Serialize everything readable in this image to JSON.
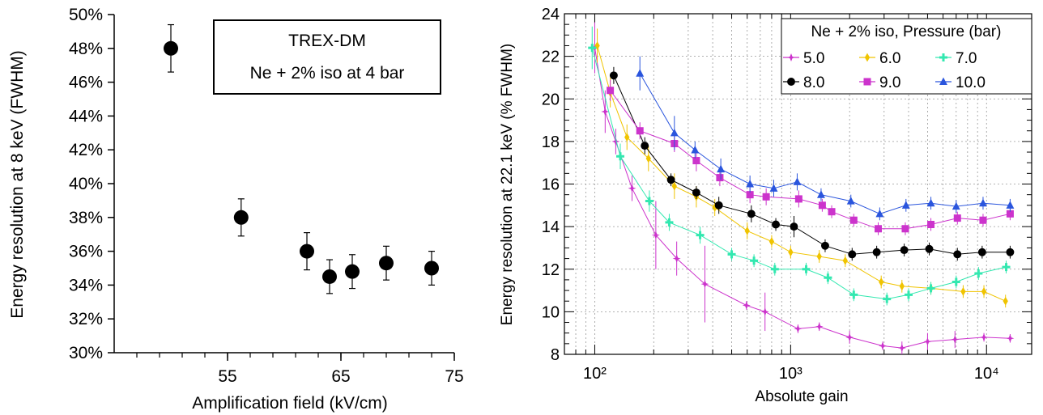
{
  "chart_data": [
    {
      "type": "scatter",
      "title": "TREX-DM",
      "subtitle": "Ne + 2% iso at 4 bar",
      "xlabel": "Amplification field (kV/cm)",
      "ylabel": "Energy resolution at 8 keV (FWHM)",
      "xlim": [
        45,
        75
      ],
      "ylim": [
        30,
        50
      ],
      "x_ticks": [
        55,
        65,
        75
      ],
      "y_ticks": [
        30,
        32,
        34,
        36,
        38,
        40,
        42,
        44,
        46,
        48,
        50
      ],
      "y_unit": "%",
      "grid": false,
      "annotation_position": "top-right",
      "points": [
        {
          "x": 50,
          "y": 48.0,
          "err": 1.4
        },
        {
          "x": 56.2,
          "y": 38.0,
          "err": 1.1
        },
        {
          "x": 62,
          "y": 36.0,
          "err": 1.1
        },
        {
          "x": 64,
          "y": 34.5,
          "err": 1.0
        },
        {
          "x": 66,
          "y": 34.8,
          "err": 1.0
        },
        {
          "x": 69,
          "y": 35.3,
          "err": 1.0
        },
        {
          "x": 73,
          "y": 35.0,
          "err": 1.0
        }
      ]
    },
    {
      "type": "line",
      "xlabel": "Absolute gain",
      "ylabel": "Energy resolution at 22.1 keV (% FWHM)",
      "x_scale": "log",
      "xlim": [
        70,
        17000
      ],
      "ylim": [
        8,
        24
      ],
      "x_tick_labels": [
        "10²",
        "10³",
        "10⁴"
      ],
      "y_ticks": [
        8,
        10,
        12,
        14,
        16,
        18,
        20,
        22,
        24
      ],
      "grid": true,
      "legend_title": "Ne + 2% iso, Pressure (bar)",
      "legend_position": "top-right",
      "series": [
        {
          "name": "5.0",
          "color": "#cc33cc",
          "marker": "star",
          "points": [
            [
              100,
              22.4,
              1.2
            ],
            [
              113,
              19.4,
              1.0
            ],
            [
              128,
              18.0,
              0.6
            ],
            [
              155,
              15.8,
              0.6
            ],
            [
              205,
              13.6,
              1.6
            ],
            [
              262,
              12.5,
              0.8
            ],
            [
              365,
              11.3,
              1.8
            ],
            [
              595,
              10.3,
              0.2
            ],
            [
              740,
              10.0,
              0.9
            ],
            [
              1090,
              9.2,
              0.2
            ],
            [
              1400,
              9.3,
              0.2
            ],
            [
              2000,
              8.8,
              0.3
            ],
            [
              2950,
              8.4,
              0.2
            ],
            [
              3700,
              8.3,
              0.3
            ],
            [
              5000,
              8.6,
              0.4
            ],
            [
              6900,
              8.7,
              0.4
            ],
            [
              9700,
              8.8,
              0.2
            ],
            [
              13200,
              8.75,
              0.2
            ]
          ]
        },
        {
          "name": "6.0",
          "color": "#f0c400",
          "marker": "diamond",
          "points": [
            [
              103,
              22.5,
              0.8
            ],
            [
              120,
              20.3,
              0.7
            ],
            [
              146,
              18.2,
              0.6
            ],
            [
              188,
              17.2,
              0.6
            ],
            [
              255,
              15.9,
              0.6
            ],
            [
              330,
              15.4,
              0.5
            ],
            [
              410,
              14.9,
              0.4
            ],
            [
              600,
              13.8,
              0.4
            ],
            [
              800,
              13.3,
              0.3
            ],
            [
              1000,
              12.8,
              0.3
            ],
            [
              1400,
              12.6,
              0.3
            ],
            [
              1900,
              12.4,
              0.3
            ],
            [
              2900,
              11.4,
              0.3
            ],
            [
              3700,
              11.2,
              0.3
            ],
            [
              5200,
              11.1,
              0.3
            ],
            [
              7600,
              10.95,
              0.3
            ],
            [
              9700,
              10.95,
              0.3
            ],
            [
              12500,
              10.5,
              0.3
            ]
          ]
        },
        {
          "name": "7.0",
          "color": "#33e8b0",
          "marker": "cross",
          "points": [
            [
              97,
              22.4,
              1.0
            ],
            [
              135,
              17.3,
              0.6
            ],
            [
              190,
              15.2,
              0.5
            ],
            [
              240,
              14.2,
              0.4
            ],
            [
              345,
              13.6,
              0.4
            ],
            [
              500,
              12.7,
              0.3
            ],
            [
              650,
              12.4,
              0.3
            ],
            [
              830,
              12.0,
              0.3
            ],
            [
              1200,
              12.0,
              0.3
            ],
            [
              1550,
              11.6,
              0.3
            ],
            [
              2100,
              10.8,
              0.3
            ],
            [
              3100,
              10.6,
              0.3
            ],
            [
              4000,
              10.8,
              0.3
            ],
            [
              5200,
              11.1,
              0.3
            ],
            [
              7000,
              11.4,
              0.3
            ],
            [
              9100,
              11.8,
              0.3
            ],
            [
              12600,
              12.1,
              0.3
            ]
          ]
        },
        {
          "name": "8.0",
          "color": "#000000",
          "marker": "circle",
          "points": [
            [
              125,
              21.1,
              0.4
            ],
            [
              180,
              17.8,
              0.4
            ],
            [
              245,
              16.2,
              0.3
            ],
            [
              330,
              15.6,
              0.3
            ],
            [
              430,
              15.0,
              0.4
            ],
            [
              630,
              14.6,
              0.4
            ],
            [
              840,
              14.1,
              0.3
            ],
            [
              1040,
              14.0,
              0.5
            ],
            [
              1500,
              13.1,
              0.3
            ],
            [
              2060,
              12.7,
              0.3
            ],
            [
              2750,
              12.8,
              0.3
            ],
            [
              3800,
              12.9,
              0.3
            ],
            [
              5100,
              12.95,
              0.3
            ],
            [
              7100,
              12.7,
              0.3
            ],
            [
              9500,
              12.8,
              0.3
            ],
            [
              13200,
              12.8,
              0.3
            ]
          ]
        },
        {
          "name": "9.0",
          "color": "#cc33cc",
          "marker": "square",
          "points": [
            [
              120,
              20.4,
              0.5
            ],
            [
              170,
              18.5,
              0.4
            ],
            [
              255,
              17.9,
              0.4
            ],
            [
              330,
              17.1,
              0.5
            ],
            [
              435,
              16.3,
              0.4
            ],
            [
              620,
              15.5,
              0.4
            ],
            [
              750,
              15.4,
              0.4
            ],
            [
              1100,
              15.3,
              0.4
            ],
            [
              1450,
              15.0,
              0.3
            ],
            [
              1620,
              14.7,
              0.3
            ],
            [
              2100,
              14.3,
              0.3
            ],
            [
              2800,
              13.9,
              0.3
            ],
            [
              3850,
              13.9,
              0.3
            ],
            [
              5200,
              14.1,
              0.3
            ],
            [
              7100,
              14.4,
              0.3
            ],
            [
              9600,
              14.3,
              0.3
            ],
            [
              13200,
              14.6,
              0.3
            ]
          ]
        },
        {
          "name": "10.0",
          "color": "#2a55dd",
          "marker": "triangle",
          "points": [
            [
              170,
              21.2,
              0.8
            ],
            [
              255,
              18.4,
              0.8
            ],
            [
              325,
              17.6,
              0.4
            ],
            [
              440,
              16.7,
              0.5
            ],
            [
              620,
              16.0,
              0.4
            ],
            [
              820,
              15.8,
              0.4
            ],
            [
              1080,
              16.1,
              0.4
            ],
            [
              1430,
              15.5,
              0.3
            ],
            [
              2030,
              15.2,
              0.3
            ],
            [
              2850,
              14.6,
              0.3
            ],
            [
              3880,
              15.0,
              0.3
            ],
            [
              5200,
              15.1,
              0.3
            ],
            [
              7000,
              14.95,
              0.3
            ],
            [
              9600,
              15.1,
              0.3
            ],
            [
              13200,
              15.0,
              0.3
            ]
          ]
        }
      ]
    }
  ]
}
